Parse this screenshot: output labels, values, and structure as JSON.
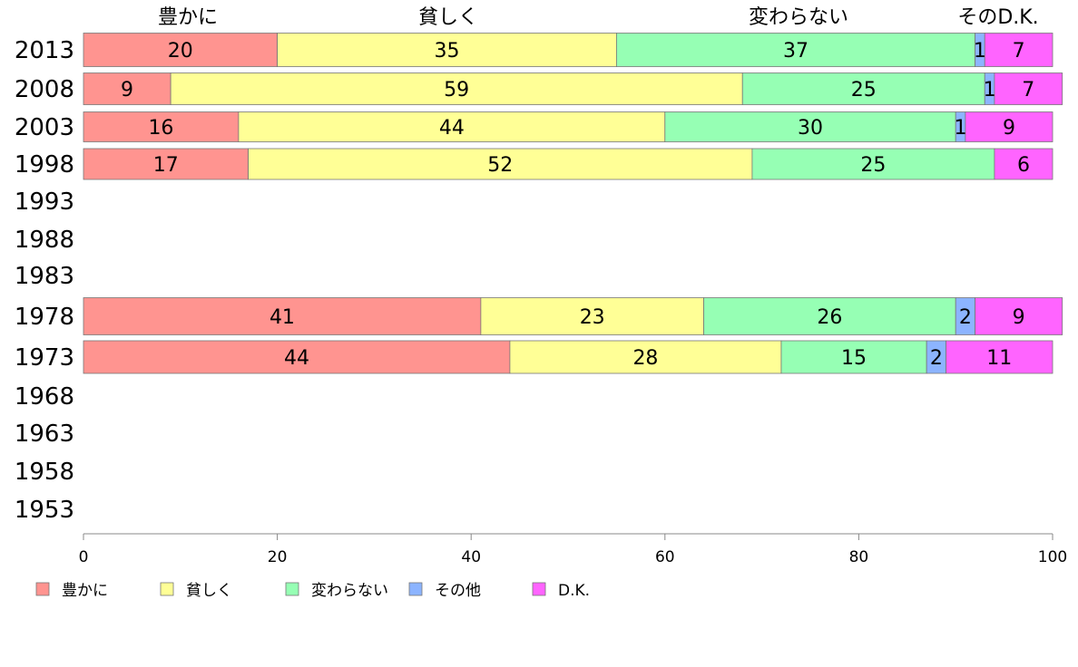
{
  "chart_data": {
    "type": "bar",
    "orientation": "horizontal",
    "stacked": true,
    "categories": [
      "2013",
      "2008",
      "2003",
      "1998",
      "1993",
      "1988",
      "1983",
      "1978",
      "1973",
      "1968",
      "1963",
      "1958",
      "1953"
    ],
    "series": [
      {
        "name": "豊かに",
        "color": "#ff9490",
        "values": [
          20,
          9,
          16,
          17,
          null,
          null,
          null,
          41,
          44,
          null,
          null,
          null,
          null
        ]
      },
      {
        "name": "貧しく",
        "color": "#ffff96",
        "values": [
          35,
          59,
          44,
          52,
          null,
          null,
          null,
          23,
          28,
          null,
          null,
          null,
          null
        ]
      },
      {
        "name": "変わらない",
        "color": "#96ffb4",
        "values": [
          37,
          25,
          30,
          25,
          null,
          null,
          null,
          26,
          15,
          null,
          null,
          null,
          null
        ]
      },
      {
        "name": "その他",
        "color": "#8cb4ff",
        "values": [
          1,
          1,
          1,
          0,
          null,
          null,
          null,
          2,
          2,
          null,
          null,
          null,
          null
        ]
      },
      {
        "name": "D.K.",
        "color": "#ff64ff",
        "values": [
          7,
          7,
          9,
          6,
          null,
          null,
          null,
          9,
          11,
          null,
          null,
          null,
          null
        ]
      }
    ],
    "top_labels": [
      "豊かに",
      "貧しく",
      "変わらない",
      "そのD.K."
    ],
    "xlim": [
      0,
      100
    ],
    "xticks": [
      "0",
      "20",
      "40",
      "60",
      "80",
      "100"
    ],
    "legend_position": "bottom-left",
    "grid": false
  }
}
